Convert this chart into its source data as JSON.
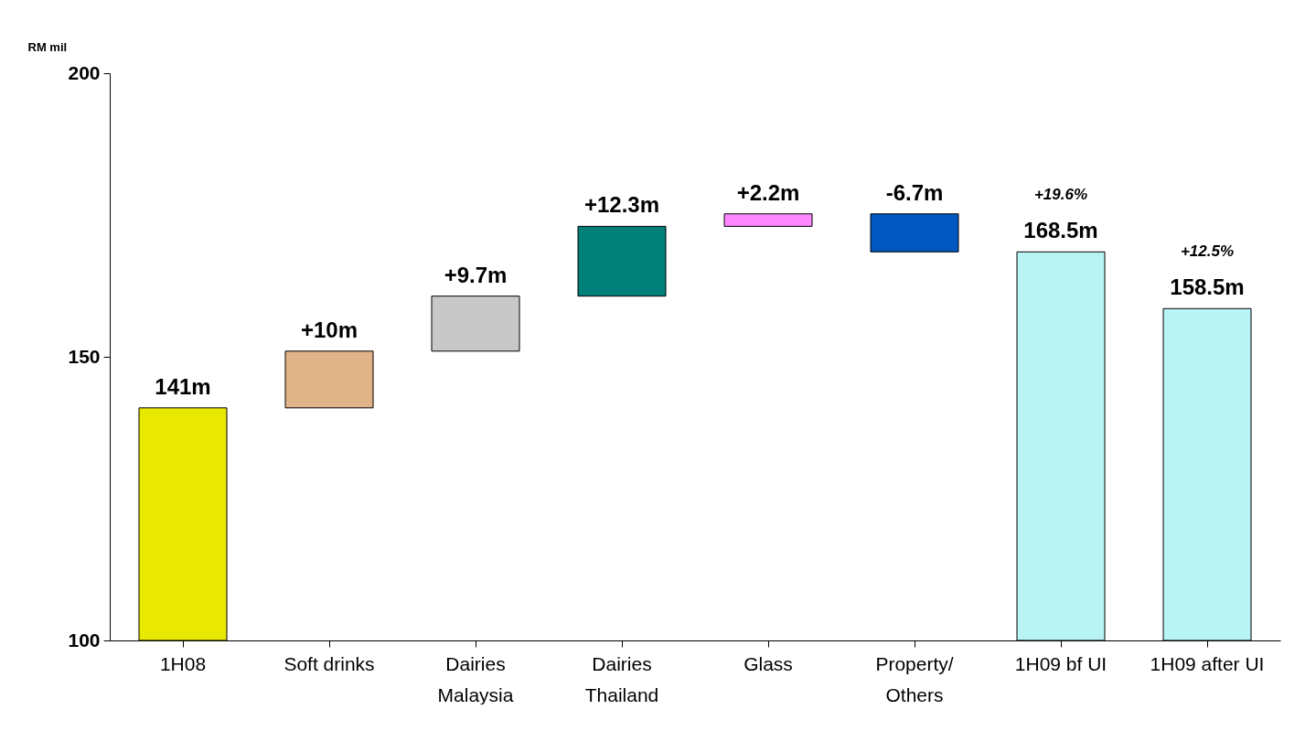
{
  "chart_data": {
    "type": "bar",
    "ylabel": "RM mil",
    "categories": [
      "1H08",
      "Soft drinks",
      "Dairies\nMalaysia",
      "Dairies\nThailand",
      "Glass",
      "Property/\nOthers",
      "1H09 bf UI",
      "1H09 after UI"
    ],
    "base": [
      100,
      141,
      151,
      160.7,
      173,
      175.2,
      100,
      100
    ],
    "values": [
      41,
      10,
      9.7,
      12.3,
      2.2,
      -6.7,
      68.5,
      58.5
    ],
    "colors": [
      "#e8e800",
      "#e0b488",
      "#c8c8c8",
      "#008078",
      "#ff88ff",
      "#0058c0",
      "#b8f4f4",
      "#b8f4f4"
    ],
    "value_labels": [
      "141m",
      "+10m",
      "+9.7m",
      "+12.3m",
      "+2.2m",
      "-6.7m",
      "168.5m",
      "158.5m"
    ],
    "annotations": [
      "+19.6%",
      "+12.5%"
    ],
    "ylim": [
      100,
      200
    ],
    "yticks": [
      100,
      150,
      200
    ],
    "grid": false
  }
}
